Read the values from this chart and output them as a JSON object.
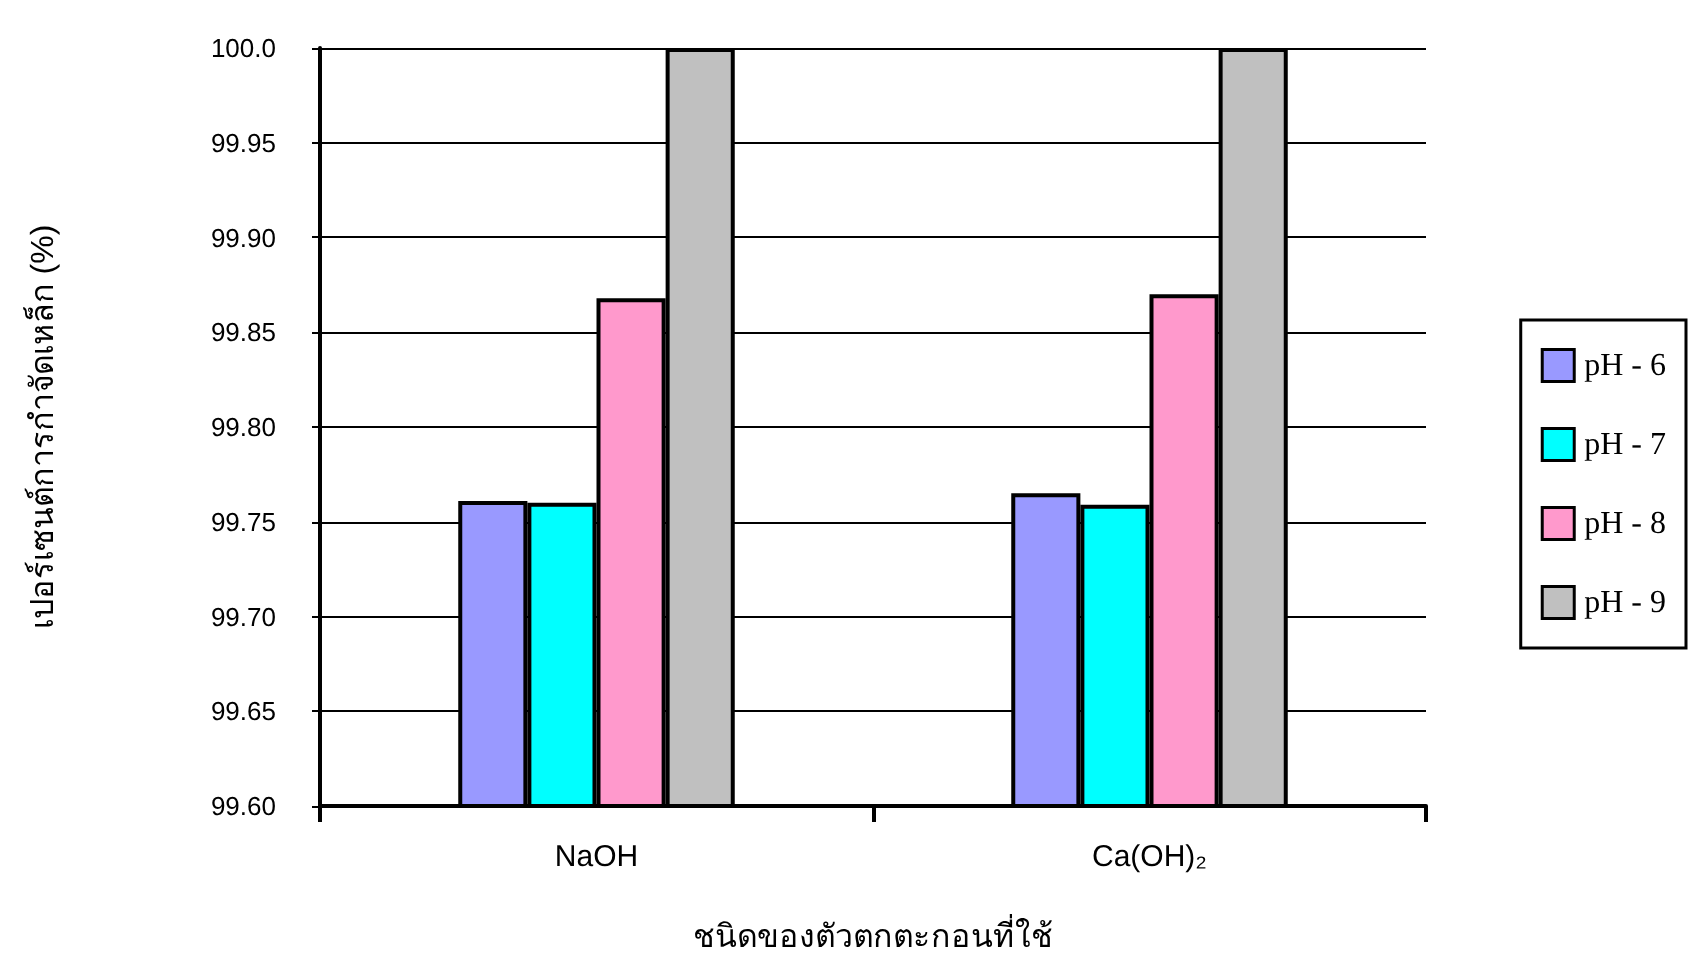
{
  "chart_data": {
    "type": "bar",
    "xlabel": "ชนิดของตัวตกตะกอนที่ใช้",
    "ylabel": "เปอร์เซนต์การกำจัดเหล็ก (%)",
    "categories": [
      "NaOH",
      "Ca(OH)₂"
    ],
    "series": [
      {
        "name": "pH - 6",
        "color": "#9999ff",
        "values": [
          99.761,
          99.765
        ]
      },
      {
        "name": "pH - 7",
        "color": "#00ffff",
        "values": [
          99.76,
          99.759
        ]
      },
      {
        "name": "pH - 8",
        "color": "#ff99cc",
        "values": [
          99.868,
          99.87
        ]
      },
      {
        "name": "pH - 9",
        "color": "#c0c0c0",
        "values": [
          100.0,
          100.0
        ]
      }
    ],
    "ylim": [
      99.6,
      100.0
    ],
    "yticks": [
      {
        "value": 99.6,
        "label": "99.60"
      },
      {
        "value": 99.65,
        "label": "99.65"
      },
      {
        "value": 99.7,
        "label": "99.70"
      },
      {
        "value": 99.75,
        "label": "99.75"
      },
      {
        "value": 99.8,
        "label": "99.80"
      },
      {
        "value": 99.85,
        "label": "99.85"
      },
      {
        "value": 99.9,
        "label": "99.90"
      },
      {
        "value": 99.95,
        "label": "99.95"
      },
      {
        "value": 100.0,
        "label": "100.0"
      }
    ],
    "grid": "y",
    "legend": "right"
  }
}
